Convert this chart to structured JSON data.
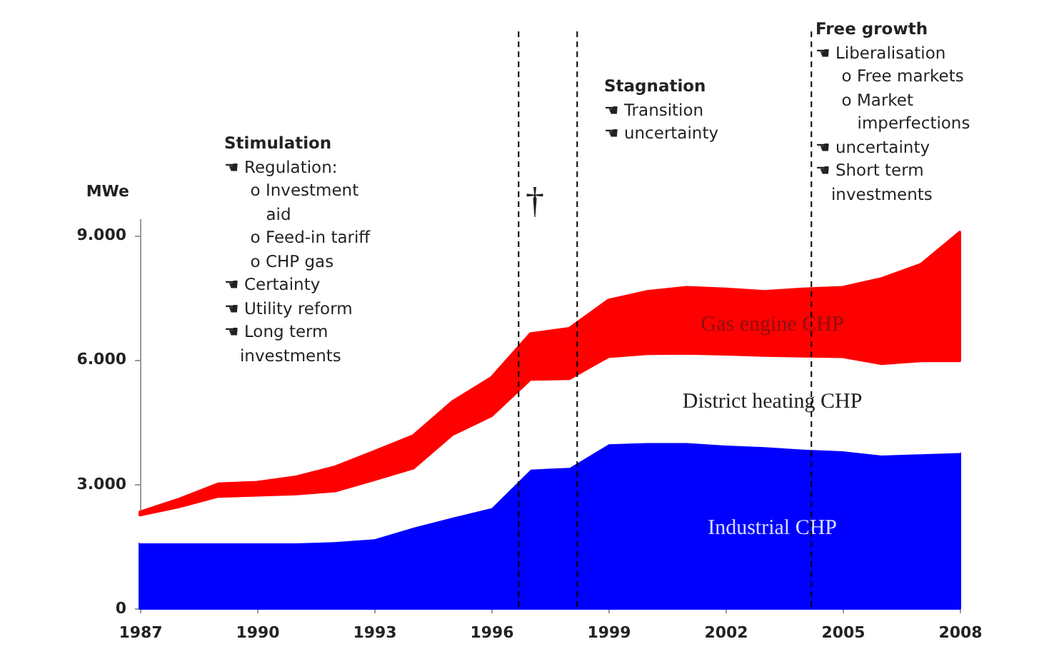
{
  "chart_data": {
    "type": "area",
    "stacked": true,
    "ylabel": "MWe",
    "x": [
      1987,
      1988,
      1989,
      1990,
      1991,
      1992,
      1993,
      1994,
      1995,
      1996,
      1997,
      1998,
      1999,
      2000,
      2001,
      2002,
      2003,
      2004,
      2005,
      2006,
      2007,
      2008
    ],
    "series": [
      {
        "name": "Industrial CHP",
        "color": "#0000ff",
        "values": [
          1600,
          1600,
          1600,
          1600,
          1600,
          1630,
          1700,
          1980,
          2220,
          2450,
          3380,
          3420,
          3990,
          4020,
          4020,
          3960,
          3920,
          3860,
          3820,
          3720,
          3750,
          3780
        ]
      },
      {
        "name": "District heating CHP",
        "color": "#ffffff",
        "values": [
          650,
          850,
          1100,
          1130,
          1160,
          1200,
          1400,
          1400,
          1970,
          2190,
          2140,
          2120,
          2080,
          2120,
          2130,
          2170,
          2180,
          2220,
          2250,
          2180,
          2220,
          2190
        ]
      },
      {
        "name": "Gas engine CHP",
        "color": "#ff0000",
        "values": [
          70,
          180,
          300,
          310,
          410,
          580,
          680,
          780,
          790,
          920,
          1100,
          1210,
          1360,
          1500,
          1590,
          1570,
          1540,
          1620,
          1670,
          2050,
          2320,
          3100
        ]
      }
    ],
    "xlim": [
      1987,
      2008
    ],
    "xticks": [
      1987,
      1990,
      1993,
      1996,
      1999,
      2002,
      2005,
      2008
    ],
    "ylim": [
      0,
      9400
    ],
    "yticks": [
      0,
      {
        "value": 3000,
        "label": "3.000"
      },
      {
        "value": 6000,
        "label": "6.000"
      },
      {
        "value": 9000,
        "label": "9.000"
      }
    ],
    "ref_lines": [
      {
        "axis": "x",
        "value": 1996.7,
        "line_style": "dashed",
        "color": "#000000"
      },
      {
        "axis": "x",
        "value": 1998.2,
        "line_style": "dashed",
        "color": "#000000"
      },
      {
        "axis": "x",
        "value": 2004.2,
        "line_style": "dashed",
        "color": "#000000"
      }
    ],
    "annotations": [
      "Stimulation\n☚ Regulation:\n     o Investment\n        aid\n     o Feed-in tariff\n     o CHP gas\n☚ Certainty\n☚ Utility reform\n☚ Long term\n   investments",
      "†",
      "Stagnation\n☚ Transition\n☚ uncertainty",
      "Free growth\n☚ Liberalisation\n     o Free markets\n     o Market\n        imperfections\n☚ uncertainty\n☚ Short term\n   investments"
    ]
  }
}
